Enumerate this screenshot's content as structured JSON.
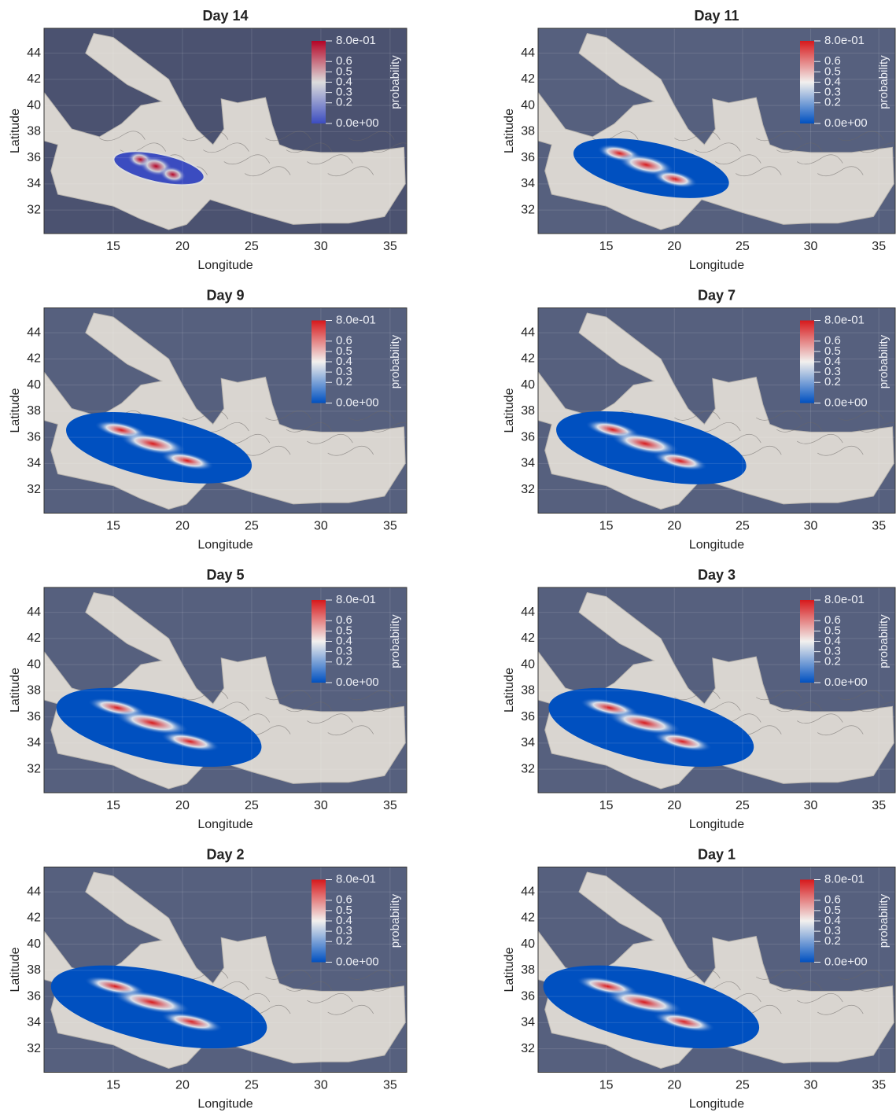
{
  "chart_data": [
    {
      "type": "map",
      "title": "Day 14",
      "xlabel": "Longitude",
      "ylabel": "Latitude",
      "xlim": [
        10,
        36.2
      ],
      "ylim": [
        30.2,
        45.9
      ],
      "xticks": [
        15,
        20,
        25,
        30,
        35
      ],
      "yticks": [
        32,
        34,
        36,
        38,
        40,
        42,
        44
      ],
      "grid": true,
      "background": "#4b5270",
      "colormap": [
        "#3b4cc0",
        "#dcdcdc",
        "#b40426"
      ],
      "colorbar": {
        "label": "probability",
        "lim": [
          0,
          0.8
        ],
        "ticks": [
          {
            "value": 0.8,
            "label": "8.0e-01"
          },
          0.6,
          0.5,
          0.4,
          0.3,
          0.2,
          {
            "value": 0,
            "label": "0.0e+00"
          }
        ]
      }
    },
    {
      "type": "map",
      "title": "Day 11",
      "xlabel": "Longitude",
      "ylabel": "Latitude",
      "xlim": [
        10,
        36.2
      ],
      "ylim": [
        30.2,
        45.9
      ],
      "xticks": [
        15,
        20,
        25,
        30,
        35
      ],
      "yticks": [
        32,
        34,
        36,
        38,
        40,
        42,
        44
      ],
      "grid": true,
      "background": "#56607e",
      "colormap": [
        "#0050c0",
        "#f2f0ee",
        "#d7191c"
      ],
      "colorbar": {
        "label": "probability",
        "lim": [
          0,
          0.8
        ],
        "ticks": [
          {
            "value": 0.8,
            "label": "8.0e-01"
          },
          0.6,
          0.5,
          0.4,
          0.3,
          0.2,
          {
            "value": 0,
            "label": "0.0e+00"
          }
        ]
      }
    },
    {
      "type": "map",
      "title": "Day 9",
      "xlabel": "Longitude",
      "ylabel": "Latitude",
      "xlim": [
        10,
        36.2
      ],
      "ylim": [
        30.2,
        45.9
      ],
      "xticks": [
        15,
        20,
        25,
        30,
        35
      ],
      "yticks": [
        32,
        34,
        36,
        38,
        40,
        42,
        44
      ],
      "grid": true,
      "background": "#56607e",
      "colormap": [
        "#0050c0",
        "#f2f0ee",
        "#d7191c"
      ],
      "colorbar": {
        "label": "probability",
        "lim": [
          0,
          0.8
        ],
        "ticks": [
          {
            "value": 0.8,
            "label": "8.0e-01"
          },
          0.6,
          0.5,
          0.4,
          0.3,
          0.2,
          {
            "value": 0,
            "label": "0.0e+00"
          }
        ]
      }
    },
    {
      "type": "map",
      "title": "Day 7",
      "xlabel": "Longitude",
      "ylabel": "Latitude",
      "xlim": [
        10,
        36.2
      ],
      "ylim": [
        30.2,
        45.9
      ],
      "xticks": [
        15,
        20,
        25,
        30,
        35
      ],
      "yticks": [
        32,
        34,
        36,
        38,
        40,
        42,
        44
      ],
      "grid": true,
      "background": "#56607e",
      "colormap": [
        "#0050c0",
        "#f2f0ee",
        "#d7191c"
      ],
      "colorbar": {
        "label": "probability",
        "lim": [
          0,
          0.8
        ],
        "ticks": [
          {
            "value": 0.8,
            "label": "8.0e-01"
          },
          0.6,
          0.5,
          0.4,
          0.3,
          0.2,
          {
            "value": 0,
            "label": "0.0e+00"
          }
        ]
      }
    },
    {
      "type": "map",
      "title": "Day 5",
      "xlabel": "Longitude",
      "ylabel": "Latitude",
      "xlim": [
        10,
        36.2
      ],
      "ylim": [
        30.2,
        45.9
      ],
      "xticks": [
        15,
        20,
        25,
        30,
        35
      ],
      "yticks": [
        32,
        34,
        36,
        38,
        40,
        42,
        44
      ],
      "grid": true,
      "background": "#56607e",
      "colormap": [
        "#0050c0",
        "#f2f0ee",
        "#d7191c"
      ],
      "colorbar": {
        "label": "probability",
        "lim": [
          0,
          0.8
        ],
        "ticks": [
          {
            "value": 0.8,
            "label": "8.0e-01"
          },
          0.6,
          0.5,
          0.4,
          0.3,
          0.2,
          {
            "value": 0,
            "label": "0.0e+00"
          }
        ]
      }
    },
    {
      "type": "map",
      "title": "Day 3",
      "xlabel": "Longitude",
      "ylabel": "Latitude",
      "xlim": [
        10,
        36.2
      ],
      "ylim": [
        30.2,
        45.9
      ],
      "xticks": [
        15,
        20,
        25,
        30,
        35
      ],
      "yticks": [
        32,
        34,
        36,
        38,
        40,
        42,
        44
      ],
      "grid": true,
      "background": "#56607e",
      "colormap": [
        "#0050c0",
        "#f2f0ee",
        "#d7191c"
      ],
      "colorbar": {
        "label": "probability",
        "lim": [
          0,
          0.8
        ],
        "ticks": [
          {
            "value": 0.8,
            "label": "8.0e-01"
          },
          0.6,
          0.5,
          0.4,
          0.3,
          0.2,
          {
            "value": 0,
            "label": "0.0e+00"
          }
        ]
      }
    },
    {
      "type": "map",
      "title": "Day 2",
      "xlabel": "Longitude",
      "ylabel": "Latitude",
      "xlim": [
        10,
        36.2
      ],
      "ylim": [
        30.2,
        45.9
      ],
      "xticks": [
        15,
        20,
        25,
        30,
        35
      ],
      "yticks": [
        32,
        34,
        36,
        38,
        40,
        42,
        44
      ],
      "grid": true,
      "background": "#56607e",
      "colormap": [
        "#0050c0",
        "#f2f0ee",
        "#d7191c"
      ],
      "colorbar": {
        "label": "probability",
        "lim": [
          0,
          0.8
        ],
        "ticks": [
          {
            "value": 0.8,
            "label": "8.0e-01"
          },
          0.6,
          0.5,
          0.4,
          0.3,
          0.2,
          {
            "value": 0,
            "label": "0.0e+00"
          }
        ]
      }
    },
    {
      "type": "map",
      "title": "Day 1",
      "xlabel": "Longitude",
      "ylabel": "Latitude",
      "xlim": [
        10,
        36.2
      ],
      "ylim": [
        30.2,
        45.9
      ],
      "xticks": [
        15,
        20,
        25,
        30,
        35
      ],
      "yticks": [
        32,
        34,
        36,
        38,
        40,
        42,
        44
      ],
      "grid": true,
      "background": "#56607e",
      "colormap": [
        "#0050c0",
        "#f2f0ee",
        "#d7191c"
      ],
      "colorbar": {
        "label": "probability",
        "lim": [
          0,
          0.8
        ],
        "ticks": [
          {
            "value": 0.8,
            "label": "8.0e-01"
          },
          0.6,
          0.5,
          0.4,
          0.3,
          0.2,
          {
            "value": 0,
            "label": "0.0e+00"
          }
        ]
      }
    }
  ]
}
